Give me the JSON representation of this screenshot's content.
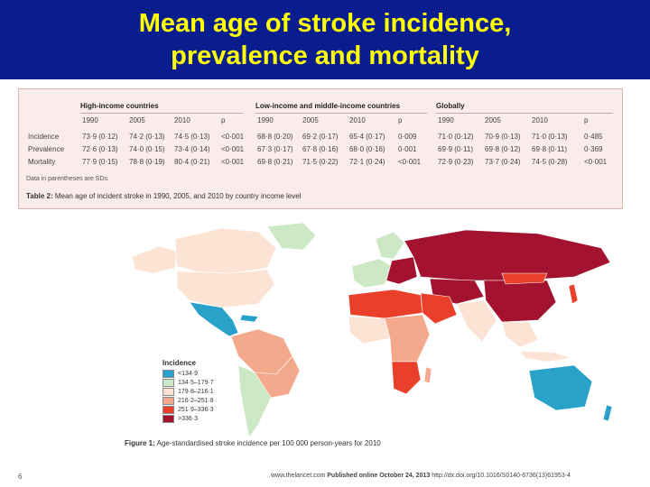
{
  "slide": {
    "title_line1": "Mean age of stroke incidence,",
    "title_line2": "prevalence and mortality"
  },
  "table": {
    "groups": [
      "High-income countries",
      "Low-income and middle-income countries",
      "Globally"
    ],
    "columns": [
      "1990",
      "2005",
      "2010",
      "p"
    ],
    "rows": [
      {
        "label": "Incidence",
        "values": [
          "73·9 (0·12)",
          "74·2 (0·13)",
          "74·5 (0·13)",
          "<0·001",
          "68·8 (0·20)",
          "69·2 (0·17)",
          "65·4 (0·17)",
          "0·009",
          "71·0 (0·12)",
          "70·9 (0·13)",
          "71·0 (0·13)",
          "0·485"
        ]
      },
      {
        "label": "Prevalence",
        "values": [
          "72·6 (0·13)",
          "74·0 (0·15)",
          "73·4 (0·14)",
          "<0·001",
          "67·3 (0·17)",
          "67·8 (0·16)",
          "68·0 (0·16)",
          "0·001",
          "69·9 (0·11)",
          "69·8 (0·12)",
          "69·8 (0·11)",
          "0·369"
        ]
      },
      {
        "label": "Mortality",
        "values": [
          "77·9 (0·15)",
          "78·8 (0·19)",
          "80·4 (0·21)",
          "<0·001",
          "69·8 (0·21)",
          "71·5 (0·22)",
          "72·1 (0·24)",
          "<0·001",
          "72·9 (0·23)",
          "73·7 (0·24)",
          "74·5 (0·28)",
          "<0·001"
        ]
      }
    ],
    "note": "Data in parentheses are SDs.",
    "caption_label": "Table 2:",
    "caption_text": " Mean age of incident stroke in 1990, 2005, and 2010 by country income level"
  },
  "map": {
    "legend_title": "Incidence",
    "legend": [
      {
        "label": "<134·9",
        "color": "#2aa1c9"
      },
      {
        "label": "134·5–179·7",
        "color": "#cde8c5"
      },
      {
        "label": "179·8–216·1",
        "color": "#fde3d3"
      },
      {
        "label": "216·2–251·8",
        "color": "#f4a98c"
      },
      {
        "label": "251·9–336·3",
        "color": "#e8402a"
      },
      {
        "label": ">336·3",
        "color": "#a3122f"
      }
    ],
    "caption_label": "Figure 1:",
    "caption_text": " Age-standardised stroke incidence per 100 000 person-years for 2010"
  },
  "footer": {
    "page_number": "6",
    "site": "www.thelancet.com",
    "published": "Published online October 24, 2013",
    "doi": "http://dx.doi.org/10.1016/S0140-6736(13)61953-4"
  }
}
